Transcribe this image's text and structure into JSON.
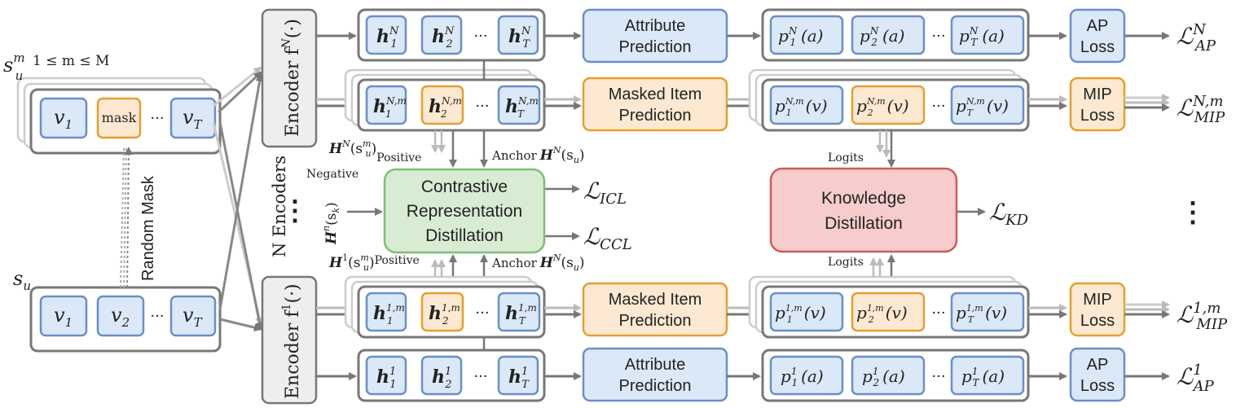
{
  "diagram": {
    "inputs": {
      "masked_seq_label": "s",
      "masked_seq_sub": "u",
      "masked_seq_sup": "m",
      "masked_seq_range": "1 ≤ m ≤ M",
      "orig_seq_label": "s",
      "orig_seq_sub": "u",
      "random_mask": "Random Mask",
      "item_v": "v",
      "sub_1": "1",
      "sub_2": "2",
      "sub_T": "T",
      "mask_token": "mask",
      "ellipsis": "···"
    },
    "encoders": {
      "top_label": "Encoder f",
      "top_sup": "N",
      "bottom_label": "Encoder f",
      "bottom_sup": "1",
      "arg": "(·)",
      "n_encoders": "N Encoders",
      "vdots": "⋮"
    },
    "tokens": {
      "h": "h",
      "sup_N": "N",
      "sup_1": "1",
      "sup_Nm": "N,m",
      "sup_1m": "1,m"
    },
    "modules": {
      "attr_pred_1": "Attribute",
      "attr_pred_2": "Prediction",
      "mip_1": "Masked Item",
      "mip_2": "Prediction",
      "crd_1": "Contrastive",
      "crd_2": "Representation",
      "crd_3": "Distillation",
      "kd_1": "Knowledge",
      "kd_2": "Distillation",
      "ap_loss_1": "AP",
      "ap_loss_2": "Loss",
      "mip_loss_1": "MIP",
      "mip_loss_2": "Loss"
    },
    "probs": {
      "p": "p",
      "arg_a": "(a)",
      "arg_v": "(v)"
    },
    "labels": {
      "positive": "Positive",
      "anchor": "Anchor",
      "negative": "Negative",
      "logits": "Logits",
      "H": "H",
      "H_sup_N": "N",
      "H_sup_n": "n",
      "H_sup_1": "1",
      "arg_su_m": "(s",
      "arg_su": "(s",
      "arg_sk": "(s"
    },
    "losses": {
      "L": "ℒ",
      "AP": "AP",
      "MIP": "MIP",
      "ICL": "ICL",
      "CCL": "CCL",
      "KD": "KD",
      "sup_N": "N",
      "sup_Nm": "N,m",
      "sup_1": "1",
      "sup_1m": "1,m"
    },
    "colors": {
      "blue_fill": "#dbe8f8",
      "blue_stroke": "#6b8fc7",
      "orange_fill": "#fde9d2",
      "orange_stroke": "#e3a02e",
      "green_fill": "#d7ecd3",
      "green_stroke": "#7cbf72",
      "red_fill": "#f6cccc",
      "red_stroke": "#cf5a5a",
      "gray_fill": "#eeeeee",
      "gray_stroke": "#777777",
      "arrow": "#777777",
      "arrow_light": "#bbbbbb"
    }
  }
}
